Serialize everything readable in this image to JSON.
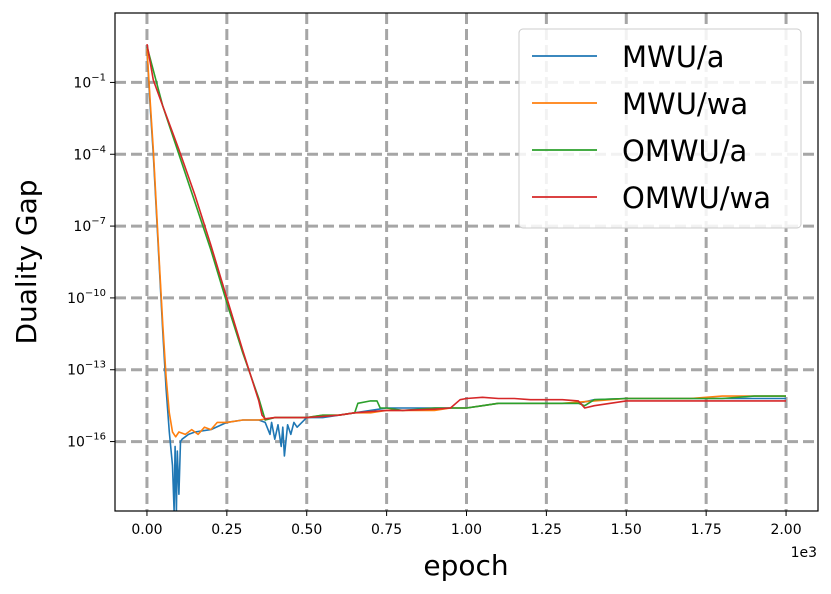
{
  "chart_data": {
    "type": "line",
    "title": "",
    "xlabel": "epoch",
    "ylabel": "Duality Gap",
    "x_offset_label": "1e3",
    "xlim": [
      -0.1,
      2.1
    ],
    "yscale": "log",
    "ylim_exp": [
      -18.9,
      1.9
    ],
    "grid": true,
    "legend_position": "top-right",
    "x_ticks": [
      {
        "value": 0.0,
        "label": "0.00"
      },
      {
        "value": 0.25,
        "label": "0.25"
      },
      {
        "value": 0.5,
        "label": "0.50"
      },
      {
        "value": 0.75,
        "label": "0.75"
      },
      {
        "value": 1.0,
        "label": "1.00"
      },
      {
        "value": 1.25,
        "label": "1.25"
      },
      {
        "value": 1.5,
        "label": "1.50"
      },
      {
        "value": 1.75,
        "label": "1.75"
      },
      {
        "value": 2.0,
        "label": "2.00"
      }
    ],
    "y_ticks": [
      {
        "exp": -1,
        "base": "10",
        "power": "−1"
      },
      {
        "exp": -4,
        "base": "10",
        "power": "−4"
      },
      {
        "exp": -7,
        "base": "10",
        "power": "−7"
      },
      {
        "exp": -10,
        "base": "10",
        "power": "−10"
      },
      {
        "exp": -13,
        "base": "10",
        "power": "−13"
      },
      {
        "exp": -16,
        "base": "10",
        "power": "−16"
      }
    ],
    "series": [
      {
        "name": "MWU/a",
        "color": "#1f77b4",
        "points": [
          [
            0.0,
            0.3
          ],
          [
            0.01,
            -2.0
          ],
          [
            0.02,
            -4.0
          ],
          [
            0.03,
            -6.5
          ],
          [
            0.04,
            -9.0
          ],
          [
            0.05,
            -11.5
          ],
          [
            0.06,
            -13.8
          ],
          [
            0.07,
            -15.6
          ],
          [
            0.08,
            -17.0
          ],
          [
            0.085,
            -18.9
          ],
          [
            0.088,
            -16.2
          ],
          [
            0.092,
            -18.9
          ],
          [
            0.095,
            -16.4
          ],
          [
            0.1,
            -18.2
          ],
          [
            0.105,
            -16.0
          ],
          [
            0.11,
            -15.9
          ],
          [
            0.13,
            -15.7
          ],
          [
            0.15,
            -15.6
          ],
          [
            0.2,
            -15.5
          ],
          [
            0.25,
            -15.2
          ],
          [
            0.3,
            -15.1
          ],
          [
            0.35,
            -15.1
          ],
          [
            0.37,
            -15.2
          ],
          [
            0.385,
            -15.7
          ],
          [
            0.39,
            -15.2
          ],
          [
            0.4,
            -15.9
          ],
          [
            0.41,
            -15.3
          ],
          [
            0.42,
            -16.2
          ],
          [
            0.425,
            -15.4
          ],
          [
            0.43,
            -16.6
          ],
          [
            0.44,
            -15.3
          ],
          [
            0.45,
            -15.7
          ],
          [
            0.46,
            -15.2
          ],
          [
            0.47,
            -15.4
          ],
          [
            0.5,
            -15.0
          ],
          [
            0.55,
            -15.0
          ],
          [
            0.6,
            -14.9
          ],
          [
            0.65,
            -14.8
          ],
          [
            0.7,
            -14.7
          ],
          [
            0.75,
            -14.6
          ],
          [
            0.8,
            -14.6
          ],
          [
            0.85,
            -14.6
          ],
          [
            0.9,
            -14.6
          ],
          [
            1.0,
            -14.6
          ],
          [
            1.05,
            -14.5
          ],
          [
            1.1,
            -14.4
          ],
          [
            1.2,
            -14.4
          ],
          [
            1.3,
            -14.4
          ],
          [
            1.35,
            -14.4
          ],
          [
            1.4,
            -14.25
          ],
          [
            1.5,
            -14.2
          ],
          [
            1.6,
            -14.2
          ],
          [
            1.7,
            -14.2
          ],
          [
            1.8,
            -14.2
          ],
          [
            1.9,
            -14.2
          ],
          [
            2.0,
            -14.2
          ]
        ]
      },
      {
        "name": "MWU/wa",
        "color": "#ff7f0e",
        "points": [
          [
            0.0,
            0.4
          ],
          [
            0.01,
            -1.8
          ],
          [
            0.02,
            -3.8
          ],
          [
            0.03,
            -6.3
          ],
          [
            0.04,
            -8.8
          ],
          [
            0.05,
            -11.2
          ],
          [
            0.06,
            -13.3
          ],
          [
            0.07,
            -14.8
          ],
          [
            0.08,
            -15.6
          ],
          [
            0.09,
            -15.8
          ],
          [
            0.1,
            -15.6
          ],
          [
            0.12,
            -15.7
          ],
          [
            0.14,
            -15.5
          ],
          [
            0.16,
            -15.7
          ],
          [
            0.18,
            -15.4
          ],
          [
            0.2,
            -15.5
          ],
          [
            0.22,
            -15.2
          ],
          [
            0.25,
            -15.2
          ],
          [
            0.3,
            -15.1
          ],
          [
            0.35,
            -15.1
          ],
          [
            0.4,
            -15.0
          ],
          [
            0.45,
            -15.0
          ],
          [
            0.5,
            -15.0
          ],
          [
            0.55,
            -14.9
          ],
          [
            0.6,
            -14.9
          ],
          [
            0.65,
            -14.8
          ],
          [
            0.7,
            -14.8
          ],
          [
            0.75,
            -14.7
          ],
          [
            0.8,
            -14.7
          ],
          [
            0.9,
            -14.7
          ],
          [
            0.95,
            -14.6
          ],
          [
            1.0,
            -14.6
          ],
          [
            1.05,
            -14.5
          ],
          [
            1.1,
            -14.4
          ],
          [
            1.15,
            -14.4
          ],
          [
            1.2,
            -14.4
          ],
          [
            1.3,
            -14.4
          ],
          [
            1.4,
            -14.3
          ],
          [
            1.5,
            -14.2
          ],
          [
            1.6,
            -14.2
          ],
          [
            1.7,
            -14.2
          ],
          [
            1.8,
            -14.1
          ],
          [
            1.9,
            -14.1
          ],
          [
            2.0,
            -14.1
          ]
        ]
      },
      {
        "name": "OMWU/a",
        "color": "#2ca02c",
        "points": [
          [
            0.0,
            0.5
          ],
          [
            0.05,
            -2.0
          ],
          [
            0.1,
            -4.0
          ],
          [
            0.15,
            -6.0
          ],
          [
            0.2,
            -8.0
          ],
          [
            0.25,
            -10.2
          ],
          [
            0.3,
            -12.3
          ],
          [
            0.35,
            -14.2
          ],
          [
            0.37,
            -15.1
          ],
          [
            0.4,
            -15.0
          ],
          [
            0.45,
            -15.0
          ],
          [
            0.5,
            -15.0
          ],
          [
            0.55,
            -14.9
          ],
          [
            0.6,
            -14.9
          ],
          [
            0.65,
            -14.8
          ],
          [
            0.66,
            -14.4
          ],
          [
            0.7,
            -14.3
          ],
          [
            0.72,
            -14.3
          ],
          [
            0.73,
            -14.6
          ],
          [
            0.75,
            -14.6
          ],
          [
            0.8,
            -14.7
          ],
          [
            0.9,
            -14.6
          ],
          [
            1.0,
            -14.6
          ],
          [
            1.05,
            -14.5
          ],
          [
            1.1,
            -14.4
          ],
          [
            1.2,
            -14.4
          ],
          [
            1.3,
            -14.4
          ],
          [
            1.35,
            -14.4
          ],
          [
            1.37,
            -14.5
          ],
          [
            1.4,
            -14.25
          ],
          [
            1.5,
            -14.2
          ],
          [
            1.6,
            -14.2
          ],
          [
            1.7,
            -14.2
          ],
          [
            1.8,
            -14.2
          ],
          [
            1.9,
            -14.1
          ],
          [
            2.0,
            -14.1
          ]
        ]
      },
      {
        "name": "OMWU/wa",
        "color": "#d62728",
        "points": [
          [
            0.0,
            0.6
          ],
          [
            0.02,
            -0.9
          ],
          [
            0.05,
            -2.0
          ],
          [
            0.1,
            -3.8
          ],
          [
            0.15,
            -5.7
          ],
          [
            0.2,
            -7.8
          ],
          [
            0.25,
            -10.0
          ],
          [
            0.3,
            -12.2
          ],
          [
            0.35,
            -14.3
          ],
          [
            0.36,
            -14.9
          ],
          [
            0.37,
            -15.05
          ],
          [
            0.4,
            -15.0
          ],
          [
            0.45,
            -15.0
          ],
          [
            0.5,
            -15.0
          ],
          [
            0.55,
            -14.95
          ],
          [
            0.6,
            -14.9
          ],
          [
            0.65,
            -14.8
          ],
          [
            0.7,
            -14.75
          ],
          [
            0.75,
            -14.7
          ],
          [
            0.8,
            -14.7
          ],
          [
            0.9,
            -14.65
          ],
          [
            0.95,
            -14.6
          ],
          [
            0.98,
            -14.25
          ],
          [
            1.0,
            -14.2
          ],
          [
            1.05,
            -14.15
          ],
          [
            1.1,
            -14.2
          ],
          [
            1.15,
            -14.2
          ],
          [
            1.2,
            -14.25
          ],
          [
            1.3,
            -14.25
          ],
          [
            1.35,
            -14.3
          ],
          [
            1.37,
            -14.6
          ],
          [
            1.4,
            -14.5
          ],
          [
            1.5,
            -14.3
          ],
          [
            1.6,
            -14.3
          ],
          [
            1.7,
            -14.3
          ],
          [
            1.8,
            -14.3
          ],
          [
            1.9,
            -14.3
          ],
          [
            2.0,
            -14.3
          ]
        ]
      }
    ]
  }
}
